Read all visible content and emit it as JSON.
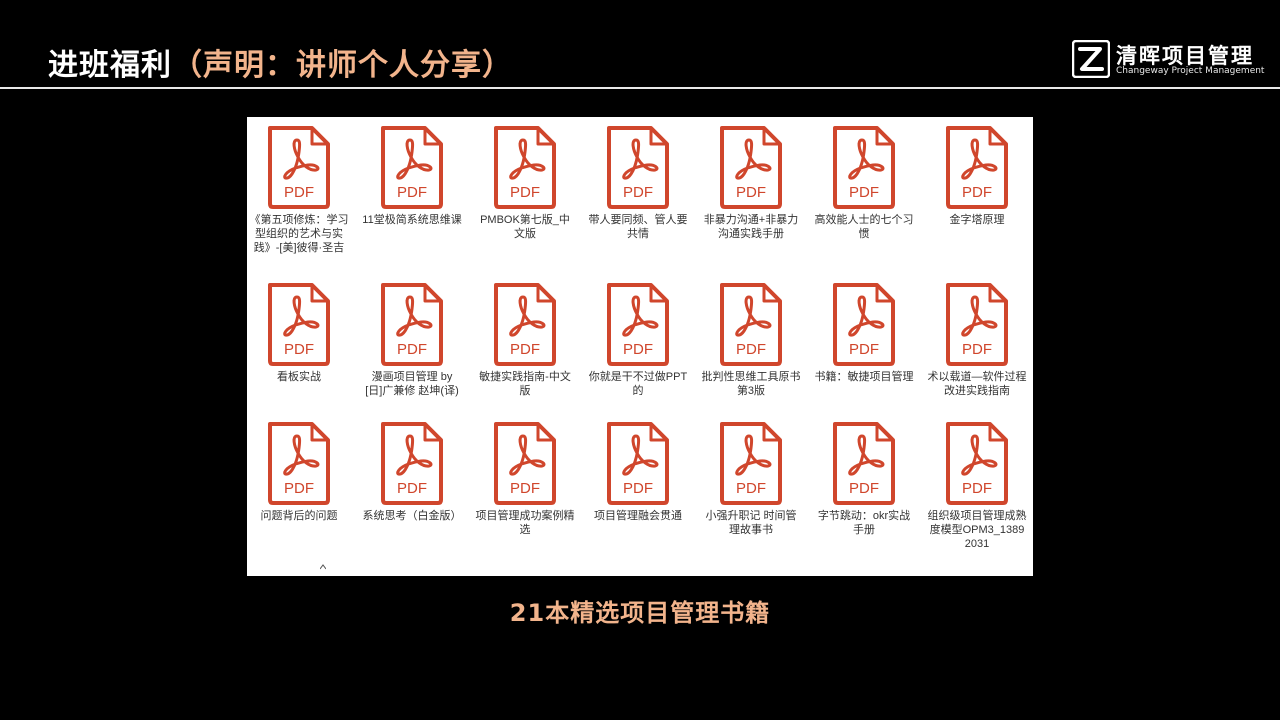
{
  "header": {
    "title_main": "进班福利",
    "title_sub": "（声明：讲师个人分享）"
  },
  "logo": {
    "name_cn": "清晖项目管理",
    "name_en": "Changeway Project Management",
    "mark": "changeway-logo-mark"
  },
  "files": [
    {
      "label": "《第五项修炼：学习型组织的艺术与实践》-[美]彼得·圣吉",
      "icon_text": "PDF"
    },
    {
      "label": "11堂极简系统思维课",
      "icon_text": "PDF"
    },
    {
      "label": "PMBOK第七版_中文版",
      "icon_text": "PDF"
    },
    {
      "label": "带人要同频、管人要共情",
      "icon_text": "PDF"
    },
    {
      "label": "非暴力沟通+非暴力沟通实践手册",
      "icon_text": "PDF"
    },
    {
      "label": "高效能人士的七个习惯",
      "icon_text": "PDF"
    },
    {
      "label": "金字塔原理",
      "icon_text": "PDF"
    },
    {
      "label": "看板实战",
      "icon_text": "PDF"
    },
    {
      "label": "漫画项目管理 by [日]广兼修 赵坤(译)",
      "icon_text": "PDF"
    },
    {
      "label": "敏捷实践指南-中文版",
      "icon_text": "PDF"
    },
    {
      "label": "你就是干不过做PPT的",
      "icon_text": "PDF"
    },
    {
      "label": "批判性思维工具原书第3版",
      "icon_text": "PDF"
    },
    {
      "label": "书籍：敏捷项目管理",
      "icon_text": "PDF"
    },
    {
      "label": "术以载道—软件过程改进实践指南",
      "icon_text": "PDF"
    },
    {
      "label": "问题背后的问题",
      "icon_text": "PDF"
    },
    {
      "label": "系统思考（白金版）",
      "icon_text": "PDF"
    },
    {
      "label": "项目管理成功案例精选",
      "icon_text": "PDF"
    },
    {
      "label": "项目管理融会贯通",
      "icon_text": "PDF"
    },
    {
      "label": "小强升职记 时间管理故事书",
      "icon_text": "PDF"
    },
    {
      "label": "字节跳动：okr实战手册",
      "icon_text": "PDF"
    },
    {
      "label": "组织级项目管理成熟度模型OPM3_13892031",
      "icon_text": "PDF"
    }
  ],
  "caption": "21本精选项目管理书籍",
  "colors": {
    "background": "#000000",
    "accent": "#f2b48c",
    "pdf_red": "#d0462c"
  },
  "icons": {
    "file": "pdf-file-icon"
  }
}
